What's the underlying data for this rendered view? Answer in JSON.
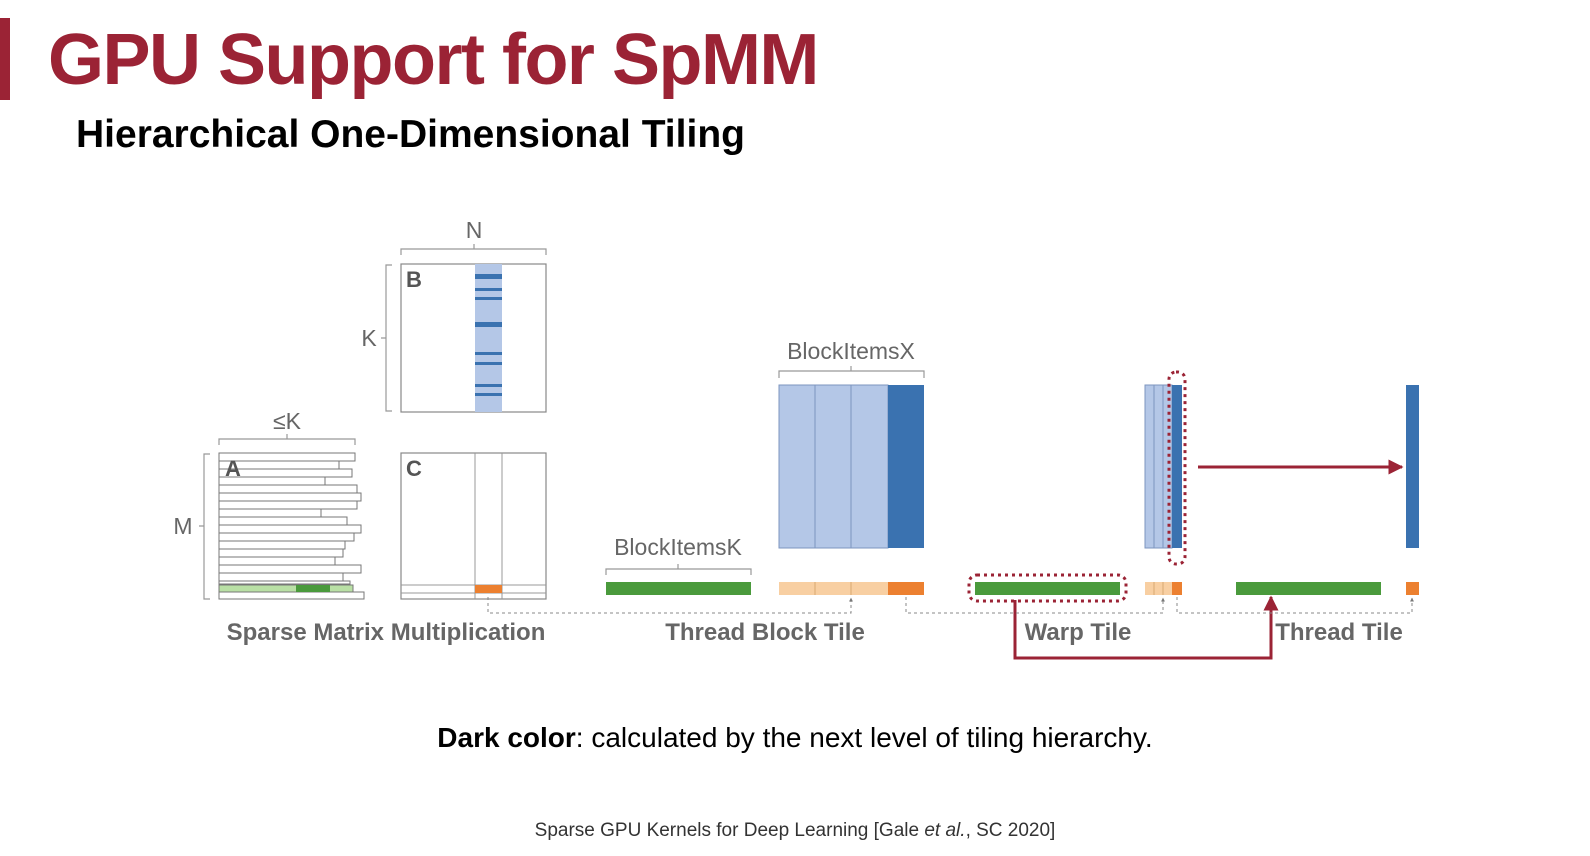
{
  "title": "GPU Support for SpMM",
  "subtitle": "Hierarchical One-Dimensional Tiling",
  "colors": {
    "title": "#9b2335",
    "light_blue": "#b4c7e7",
    "dark_blue": "#3a72b0",
    "light_green": "#b9e0a5",
    "dark_green": "#4a9a3c",
    "light_orange": "#f8cfa2",
    "dark_orange": "#ec8030",
    "arrow": "#9b2335"
  },
  "diagram": {
    "matrix_labels": {
      "a": "A",
      "b": "B",
      "c": "C"
    },
    "dim_labels": {
      "n": "N",
      "k": "K",
      "le_k": "≤K",
      "m": "M"
    },
    "block_items_x": "BlockItemsX",
    "block_items_k": "BlockItemsK",
    "captions": {
      "spmm": "Sparse Matrix Multiplication",
      "thread_block": "Thread Block Tile",
      "warp": "Warp Tile",
      "thread": "Thread Tile"
    }
  },
  "note": {
    "bold": "Dark color",
    "text": ": calculated by the next level of tiling hierarchy."
  },
  "citation": {
    "before": "Sparse GPU Kernels for Deep Learning [Gale ",
    "italic": "et al.",
    "after": ", SC 2020]"
  }
}
